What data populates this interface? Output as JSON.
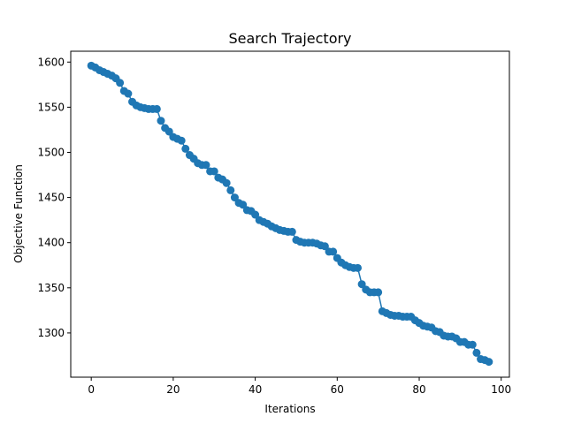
{
  "chart_data": {
    "type": "line",
    "title": "Search Trajectory",
    "xlabel": "Iterations",
    "ylabel": "Objective Function",
    "xlim": [
      -5,
      102
    ],
    "ylim": [
      1251,
      1612
    ],
    "xticks": [
      0,
      20,
      40,
      60,
      80,
      100
    ],
    "yticks": [
      1300,
      1350,
      1400,
      1450,
      1500,
      1550,
      1600
    ],
    "grid": false,
    "legend": null,
    "marker": "circle",
    "color": "#1f77b4",
    "series": [
      {
        "x": [
          0,
          1,
          2,
          3,
          4,
          5,
          6,
          7,
          8,
          9,
          10,
          11,
          12,
          13,
          14,
          15,
          16,
          17,
          18,
          19,
          20,
          21,
          22,
          23,
          24,
          25,
          26,
          27,
          28,
          29,
          30,
          31,
          32,
          33,
          34,
          35,
          36,
          37,
          38,
          39,
          40,
          41,
          42,
          43,
          44,
          45,
          46,
          47,
          48,
          49,
          50,
          51,
          52,
          53,
          54,
          55,
          56,
          57,
          58,
          59,
          60,
          61,
          62,
          63,
          64,
          65,
          66,
          67,
          68,
          69,
          70,
          71,
          72,
          73,
          74,
          75,
          76,
          77,
          78,
          79,
          80,
          81,
          82,
          83,
          84,
          85,
          86,
          87,
          88,
          89,
          90,
          91,
          92,
          93,
          94,
          95,
          96,
          97
        ],
        "values": [
          1596,
          1594,
          1591,
          1589,
          1587,
          1585,
          1582,
          1577,
          1568,
          1565,
          1556,
          1552,
          1550,
          1549,
          1548,
          1548,
          1548,
          1535,
          1527,
          1523,
          1517,
          1515,
          1513,
          1504,
          1497,
          1493,
          1488,
          1486,
          1486,
          1479,
          1479,
          1472,
          1470,
          1466,
          1458,
          1450,
          1444,
          1442,
          1436,
          1435,
          1431,
          1425,
          1423,
          1421,
          1418,
          1416,
          1414,
          1413,
          1412,
          1412,
          1403,
          1401,
          1400,
          1400,
          1400,
          1399,
          1397,
          1396,
          1390,
          1390,
          1383,
          1378,
          1375,
          1373,
          1372,
          1372,
          1354,
          1348,
          1345,
          1345,
          1345,
          1324,
          1322,
          1320,
          1319,
          1319,
          1318,
          1318,
          1318,
          1314,
          1311,
          1308,
          1307,
          1306,
          1302,
          1301,
          1297,
          1296,
          1296,
          1294,
          1290,
          1290,
          1287,
          1287,
          1278,
          1271,
          1270,
          1268
        ]
      }
    ]
  }
}
